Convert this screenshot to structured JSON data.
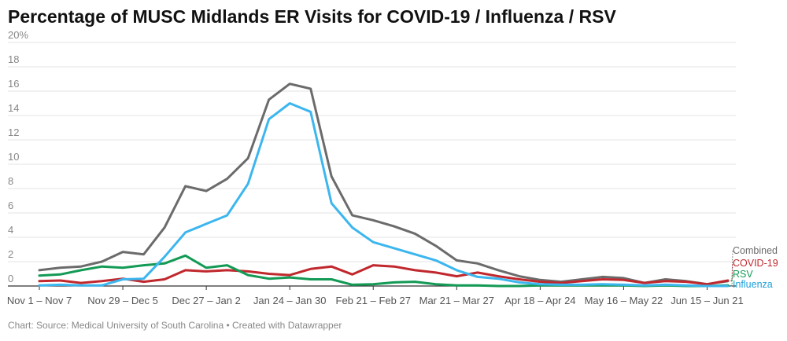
{
  "title": "Percentage of MUSC Midlands ER Visits for COVID-19 / Influenza / RSV",
  "footer": "Chart: Source: Medical University of South Carolina • Created with Datawrapper",
  "chart_data": {
    "type": "line",
    "title": "Percentage of MUSC Midlands ER Visits for COVID-19 / Influenza / RSV",
    "xlabel": "",
    "ylabel": "",
    "ylim": [
      0,
      20
    ],
    "yticks": [
      "0",
      "2",
      "4",
      "6",
      "8",
      "10",
      "12",
      "14",
      "16",
      "18",
      "20%"
    ],
    "grid": true,
    "x_tick_labels": [
      "Nov 1 – Nov 7",
      "Nov 29 – Dec 5",
      "Dec 27 – Jan 2",
      "Jan 24 – Jan 30",
      "Feb 21 – Feb 27",
      "Mar 21 – Mar 27",
      "Apr 18 – Apr 24",
      "May 16 – May 22",
      "Jun 15 – Jun 21"
    ],
    "x_tick_index": [
      0,
      4,
      8,
      12,
      16,
      20,
      24,
      28,
      32
    ],
    "series": [
      {
        "name": "Combined",
        "color": "#6b6b6b",
        "values": [
          1.3,
          1.5,
          1.6,
          2.0,
          2.8,
          2.6,
          4.8,
          8.2,
          7.8,
          8.8,
          10.5,
          15.3,
          16.6,
          16.2,
          9.0,
          5.8,
          5.4,
          4.9,
          4.3,
          3.3,
          2.1,
          1.85,
          1.3,
          0.8,
          0.5,
          0.35,
          0.55,
          0.75,
          0.65,
          0.25,
          0.55,
          0.4,
          0.15,
          0.4
        ]
      },
      {
        "name": "COVID-19",
        "color": "#c0282d",
        "values": [
          0.4,
          0.45,
          0.25,
          0.4,
          0.6,
          0.35,
          0.55,
          1.3,
          1.2,
          1.3,
          1.2,
          1.0,
          0.9,
          1.4,
          1.6,
          0.95,
          1.7,
          1.6,
          1.3,
          1.1,
          0.8,
          1.1,
          0.8,
          0.55,
          0.35,
          0.25,
          0.4,
          0.55,
          0.5,
          0.25,
          0.4,
          0.35,
          0.15,
          0.45
        ]
      },
      {
        "name": "RSV",
        "color": "#139a55",
        "values": [
          0.85,
          0.95,
          1.3,
          1.6,
          1.5,
          1.7,
          1.85,
          2.5,
          1.5,
          1.7,
          0.9,
          0.6,
          0.7,
          0.55,
          0.55,
          0.1,
          0.15,
          0.3,
          0.35,
          0.15,
          0.05,
          0.05,
          0.0,
          0.0,
          0.05,
          0.05,
          0.05,
          0.05,
          0.05,
          0.0,
          0.05,
          0.0,
          0.0,
          0.05
        ]
      },
      {
        "name": "Influenza",
        "color": "#3cb6ee",
        "values": [
          0.05,
          0.1,
          0.05,
          0.05,
          0.55,
          0.6,
          2.4,
          4.4,
          5.1,
          5.8,
          8.4,
          13.7,
          15.0,
          14.3,
          6.8,
          4.8,
          3.6,
          3.1,
          2.6,
          2.1,
          1.3,
          0.75,
          0.6,
          0.3,
          0.15,
          0.1,
          0.1,
          0.15,
          0.1,
          0.05,
          0.1,
          0.05,
          0.0,
          0.0
        ]
      }
    ],
    "legend": "right-end"
  }
}
